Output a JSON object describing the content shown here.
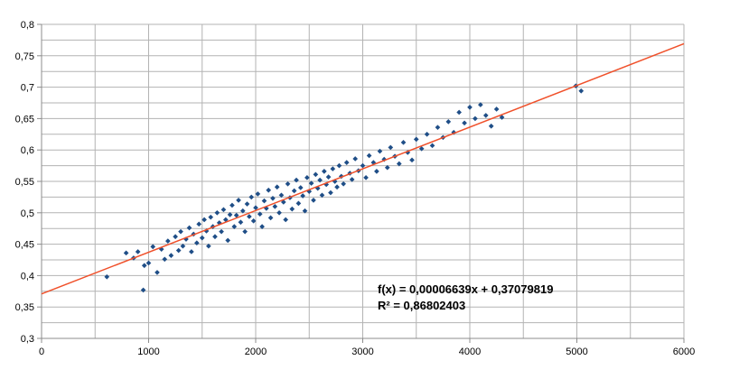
{
  "chart_data": {
    "type": "scatter",
    "title": "",
    "xlabel": "",
    "ylabel": "",
    "xlim": [
      0,
      6000
    ],
    "ylim": [
      0.3,
      0.8
    ],
    "x_ticks": [
      0,
      1000,
      2000,
      3000,
      4000,
      5000,
      6000
    ],
    "x_tick_labels": [
      "0",
      "1000",
      "2000",
      "3000",
      "4000",
      "5000",
      "6000"
    ],
    "y_ticks": [
      0.3,
      0.35,
      0.4,
      0.45,
      0.5,
      0.55,
      0.6,
      0.65,
      0.7,
      0.75,
      0.8
    ],
    "y_tick_labels": [
      "0,3",
      "0,35",
      "0,4",
      "0,45",
      "0,5",
      "0,55",
      "0,6",
      "0,65",
      "0,7",
      "0,75",
      "0,8"
    ],
    "grid": true,
    "colors": {
      "points": "#1f4e87",
      "trendline": "#f0502a",
      "grid": "#b3b3b3"
    },
    "trendline": {
      "type": "linear",
      "slope": 6.639e-05,
      "intercept": 0.37079819,
      "equation_label": "f(x) = 0,00006639x + 0,37079819",
      "r2_label": "R² = 0,86802403"
    },
    "series": [
      {
        "points": [
          [
            610,
            0.398
          ],
          [
            790,
            0.436
          ],
          [
            860,
            0.428
          ],
          [
            900,
            0.438
          ],
          [
            950,
            0.377
          ],
          [
            960,
            0.416
          ],
          [
            1000,
            0.42
          ],
          [
            1040,
            0.446
          ],
          [
            1080,
            0.405
          ],
          [
            1120,
            0.442
          ],
          [
            1150,
            0.426
          ],
          [
            1180,
            0.455
          ],
          [
            1210,
            0.432
          ],
          [
            1250,
            0.462
          ],
          [
            1280,
            0.44
          ],
          [
            1300,
            0.47
          ],
          [
            1320,
            0.447
          ],
          [
            1350,
            0.458
          ],
          [
            1380,
            0.476
          ],
          [
            1400,
            0.438
          ],
          [
            1420,
            0.466
          ],
          [
            1450,
            0.452
          ],
          [
            1470,
            0.482
          ],
          [
            1500,
            0.46
          ],
          [
            1520,
            0.489
          ],
          [
            1540,
            0.471
          ],
          [
            1560,
            0.447
          ],
          [
            1580,
            0.493
          ],
          [
            1600,
            0.478
          ],
          [
            1620,
            0.462
          ],
          [
            1640,
            0.5
          ],
          [
            1660,
            0.484
          ],
          [
            1680,
            0.47
          ],
          [
            1700,
            0.505
          ],
          [
            1720,
            0.489
          ],
          [
            1740,
            0.456
          ],
          [
            1760,
            0.497
          ],
          [
            1780,
            0.512
          ],
          [
            1800,
            0.478
          ],
          [
            1820,
            0.496
          ],
          [
            1840,
            0.52
          ],
          [
            1860,
            0.485
          ],
          [
            1880,
            0.503
          ],
          [
            1900,
            0.47
          ],
          [
            1920,
            0.514
          ],
          [
            1940,
            0.494
          ],
          [
            1960,
            0.525
          ],
          [
            1980,
            0.487
          ],
          [
            2000,
            0.508
          ],
          [
            2020,
            0.53
          ],
          [
            2040,
            0.498
          ],
          [
            2060,
            0.478
          ],
          [
            2080,
            0.519
          ],
          [
            2100,
            0.507
          ],
          [
            2120,
            0.536
          ],
          [
            2140,
            0.492
          ],
          [
            2160,
            0.523
          ],
          [
            2180,
            0.51
          ],
          [
            2200,
            0.541
          ],
          [
            2220,
            0.5
          ],
          [
            2240,
            0.528
          ],
          [
            2260,
            0.517
          ],
          [
            2280,
            0.489
          ],
          [
            2300,
            0.546
          ],
          [
            2320,
            0.524
          ],
          [
            2340,
            0.506
          ],
          [
            2360,
            0.535
          ],
          [
            2380,
            0.552
          ],
          [
            2400,
            0.515
          ],
          [
            2420,
            0.54
          ],
          [
            2440,
            0.527
          ],
          [
            2460,
            0.503
          ],
          [
            2480,
            0.556
          ],
          [
            2500,
            0.534
          ],
          [
            2520,
            0.547
          ],
          [
            2540,
            0.52
          ],
          [
            2560,
            0.561
          ],
          [
            2580,
            0.539
          ],
          [
            2600,
            0.552
          ],
          [
            2620,
            0.528
          ],
          [
            2640,
            0.566
          ],
          [
            2660,
            0.545
          ],
          [
            2680,
            0.557
          ],
          [
            2700,
            0.532
          ],
          [
            2720,
            0.57
          ],
          [
            2740,
            0.55
          ],
          [
            2760,
            0.541
          ],
          [
            2780,
            0.575
          ],
          [
            2800,
            0.558
          ],
          [
            2820,
            0.546
          ],
          [
            2850,
            0.58
          ],
          [
            2880,
            0.563
          ],
          [
            2900,
            0.553
          ],
          [
            2930,
            0.586
          ],
          [
            2960,
            0.567
          ],
          [
            3000,
            0.575
          ],
          [
            3030,
            0.556
          ],
          [
            3060,
            0.591
          ],
          [
            3100,
            0.58
          ],
          [
            3130,
            0.566
          ],
          [
            3160,
            0.598
          ],
          [
            3200,
            0.585
          ],
          [
            3230,
            0.572
          ],
          [
            3260,
            0.604
          ],
          [
            3300,
            0.59
          ],
          [
            3340,
            0.578
          ],
          [
            3380,
            0.612
          ],
          [
            3420,
            0.596
          ],
          [
            3460,
            0.584
          ],
          [
            3500,
            0.617
          ],
          [
            3550,
            0.602
          ],
          [
            3600,
            0.625
          ],
          [
            3650,
            0.607
          ],
          [
            3700,
            0.636
          ],
          [
            3750,
            0.62
          ],
          [
            3800,
            0.645
          ],
          [
            3850,
            0.628
          ],
          [
            3900,
            0.66
          ],
          [
            3950,
            0.643
          ],
          [
            4000,
            0.668
          ],
          [
            4050,
            0.65
          ],
          [
            4100,
            0.672
          ],
          [
            4150,
            0.655
          ],
          [
            4200,
            0.638
          ],
          [
            4250,
            0.665
          ],
          [
            4300,
            0.652
          ],
          [
            4990,
            0.702
          ],
          [
            5040,
            0.694
          ]
        ]
      }
    ]
  }
}
